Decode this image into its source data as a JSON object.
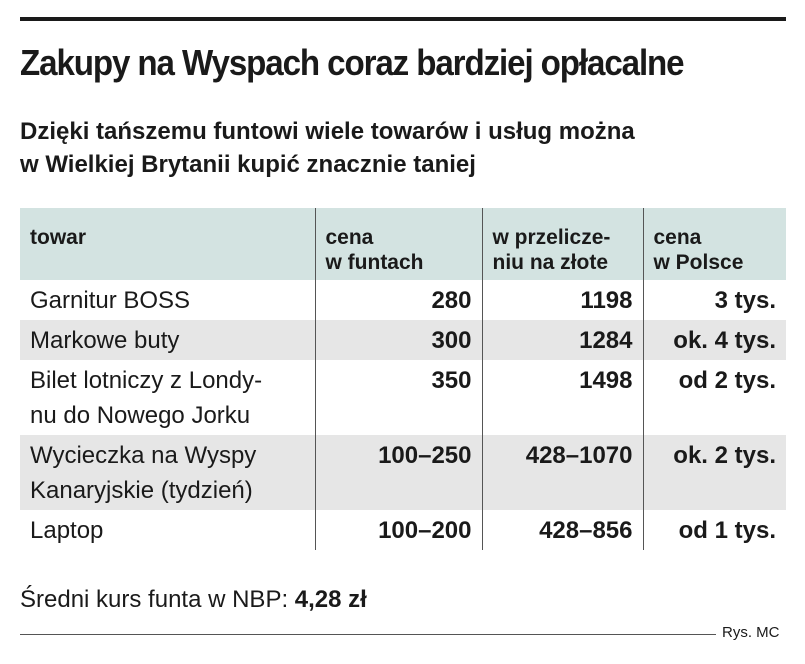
{
  "chart_data": {
    "type": "table",
    "title": "Zakupy na Wyspach coraz bardziej opłacalne",
    "subtitle_lines": [
      "Dzięki tańszemu funtowi wiele towarów i usług można",
      "w Wielkiej Brytanii kupić znacznie taniej"
    ],
    "columns": [
      [
        "towar"
      ],
      [
        "cena",
        "w funtach"
      ],
      [
        "w przelicze-",
        "niu na złote"
      ],
      [
        "cena",
        "w Polsce"
      ]
    ],
    "rows": [
      {
        "item": [
          "Garnitur BOSS"
        ],
        "gbp": "280",
        "pln": "1198",
        "poland": "3 tys."
      },
      {
        "item": [
          "Markowe buty"
        ],
        "gbp": "300",
        "pln": "1284",
        "poland": "ok. 4 tys."
      },
      {
        "item": [
          "Bilet lotniczy z Londy-",
          "nu do Nowego Jorku"
        ],
        "gbp": "350",
        "pln": "1498",
        "poland": "od 2 tys."
      },
      {
        "item": [
          "Wycieczka na Wyspy",
          "Kanaryjskie (tydzień)"
        ],
        "gbp": "100–250",
        "pln": "428–1070",
        "poland": "ok. 2 tys."
      },
      {
        "item": [
          "Laptop"
        ],
        "gbp": "100–200",
        "pln": "428–856",
        "poland": "od 1 tys."
      }
    ],
    "note_label": "Średni kurs funta w NBP: ",
    "note_value": "4,28 zł",
    "credit": "Rys. MC"
  }
}
